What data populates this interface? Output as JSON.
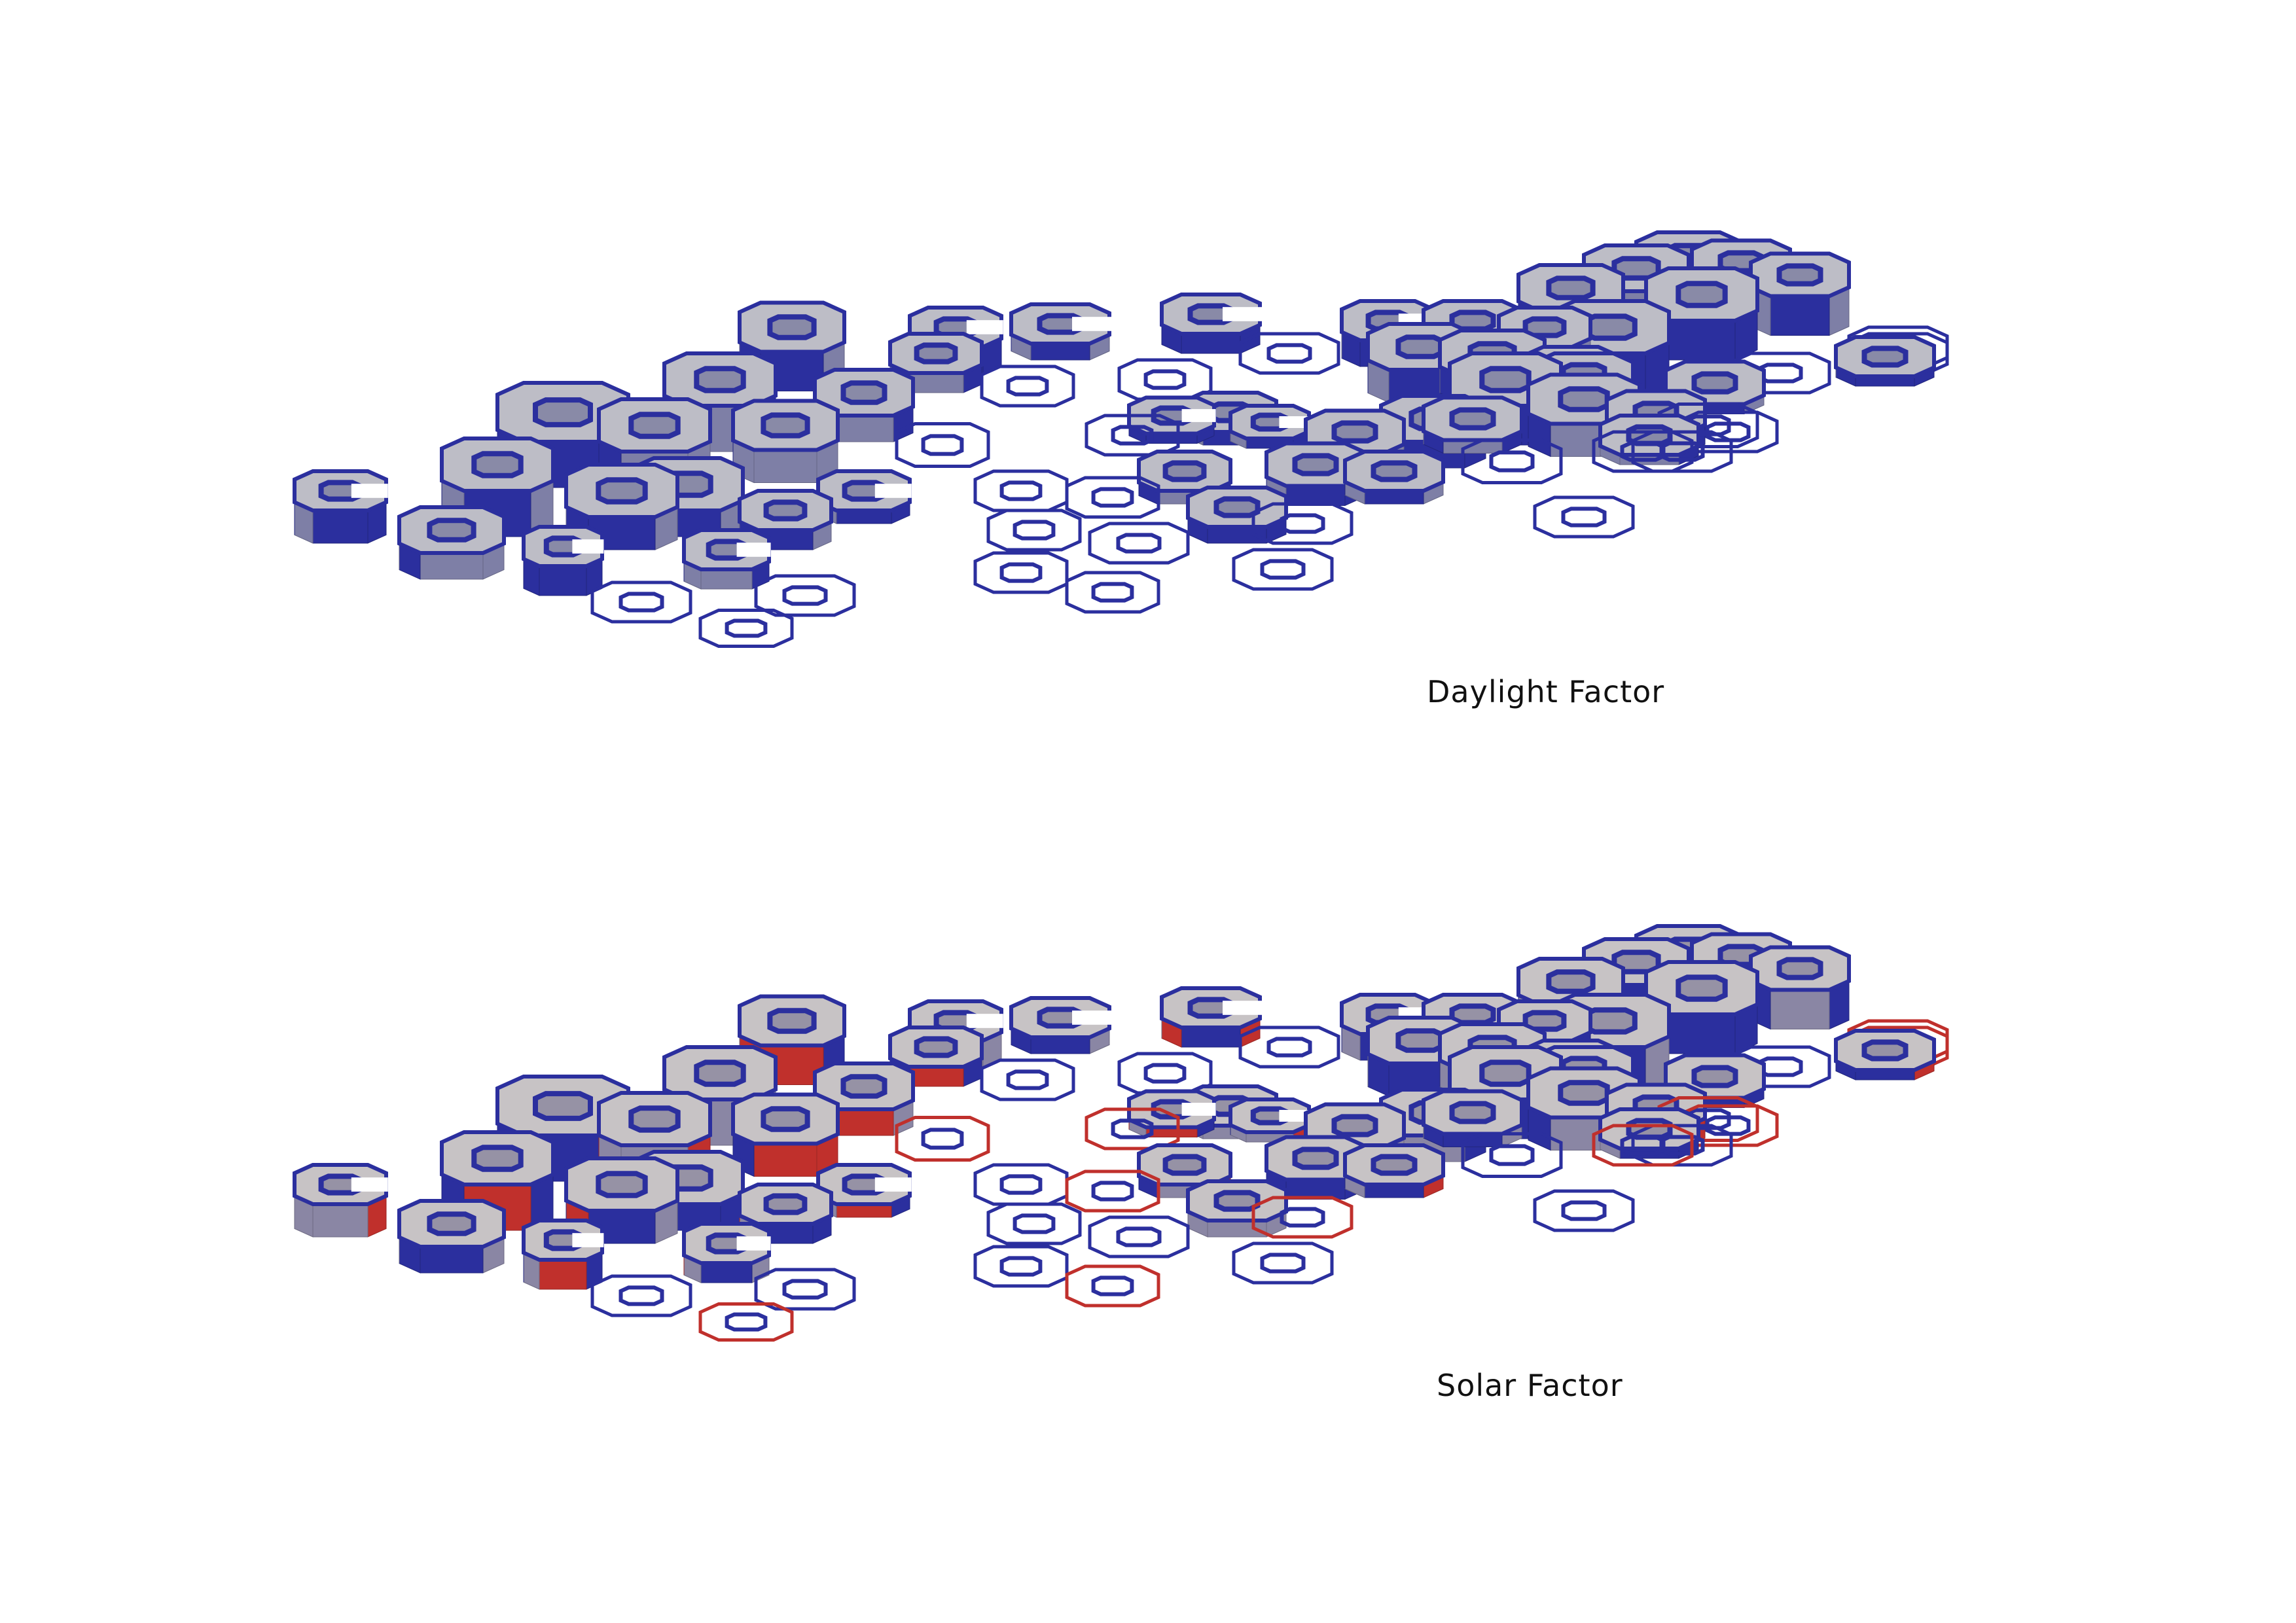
{
  "diagrams": [
    {
      "caption": "Daylight Factor",
      "colors": {
        "primary": "#2b2f9e",
        "mid": "#9a9aa8",
        "accent": "#2b2f9e",
        "thin": "#2b2f9e"
      }
    },
    {
      "caption": "Solar Factor",
      "colors": {
        "primary": "#2b2f9e",
        "mid": "#a9a3a6",
        "accent": "#c0302c",
        "thin": "#c0302c"
      }
    }
  ],
  "legend_colors": {
    "low": "#2b2f9e",
    "neutral": "#b4b4bc",
    "high": "#c0302c"
  }
}
